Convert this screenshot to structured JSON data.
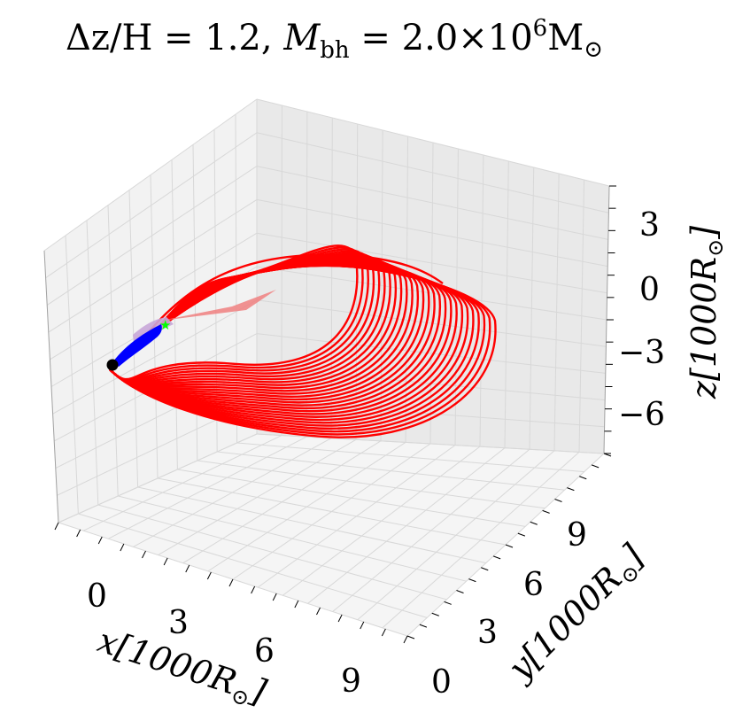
{
  "chart_data": {
    "type": "line3d",
    "title": "Δz/H = 1.2, M_bh = 2.0×10⁶ M⊙",
    "xlabel": "x [1000R⊙]",
    "ylabel": "y [1000R⊙]",
    "zlabel": "z [1000R⊙]",
    "x_ticks": [
      "0",
      "3",
      "6",
      "9"
    ],
    "y_ticks": [
      "0",
      "3",
      "6",
      "9"
    ],
    "z_ticks": [
      "3",
      "0",
      "−3",
      "−6"
    ],
    "grid": true,
    "series": [
      {
        "name": "disc-particle-orbits",
        "color": "#ff0000",
        "orbits": 26,
        "apocentre_x_range": [
          6.2,
          9.6
        ],
        "y_extent": [
          0,
          9.4
        ],
        "z_extent": [
          -6.2,
          0.5
        ]
      },
      {
        "name": "inner-stream",
        "color": "#0000ff"
      },
      {
        "name": "stream-fan",
        "color": "#f08080"
      }
    ],
    "markers": [
      {
        "name": "black-hole",
        "color": "#000000",
        "x": 0,
        "y": 0,
        "z": -3
      },
      {
        "name": "star",
        "color": "#00ff00",
        "x": 0.5,
        "y": 1.3,
        "z": -1.8
      }
    ]
  },
  "labels": {
    "title_main": "Δz/H = 1.2, ",
    "title_M": "M",
    "title_bh": "bh",
    "title_value": " = 2.0×10",
    "title_exp": "6",
    "title_unit": "M",
    "title_sun": "⊙",
    "x_axis_text": "x[1000R",
    "y_axis_text": "y[1000R",
    "z_axis_text": "z[1000R",
    "sun": "⊙",
    "bracket": "]"
  }
}
